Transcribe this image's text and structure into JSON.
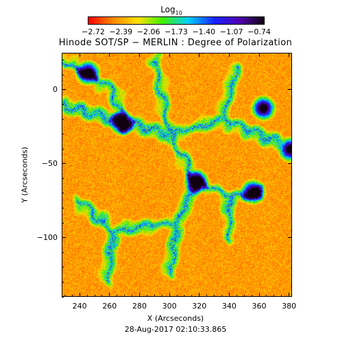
{
  "colorbar": {
    "title_main": "Log",
    "title_sub": "10",
    "tick_labels": [
      "−2.72",
      "−2.39",
      "−2.06",
      "−1.73",
      "−1.40",
      "−1.07",
      "−0.74"
    ],
    "colors": [
      "#ff0000",
      "#ff8800",
      "#ffe000",
      "#44f000",
      "#00d0ff",
      "#1820ff",
      "#5000b0",
      "#100010"
    ]
  },
  "title": "Hinode SOT/SP − MERLIN : Degree of Polarization",
  "axes": {
    "xlabel": "X (Arcseconds)",
    "ylabel": "Y (Arcseconds)",
    "xlim": [
      228,
      382
    ],
    "ylim": [
      -140,
      25
    ],
    "x_ticks": [
      240,
      260,
      280,
      300,
      320,
      340,
      360,
      380
    ],
    "y_ticks": [
      0,
      -50,
      -100
    ],
    "x_tick_labels": [
      "240",
      "260",
      "280",
      "300",
      "320",
      "340",
      "360",
      "380"
    ],
    "y_tick_labels": [
      "0",
      "−50",
      "−100"
    ]
  },
  "timestamp": "28-Aug-2017 02:10:33.865",
  "map": {
    "quantity": "Degree of Polarization",
    "scale": "log10",
    "value_range": [
      -2.72,
      -0.74
    ],
    "features": [
      {
        "kind": "strong-field-patch",
        "x": 245,
        "y": 12
      },
      {
        "kind": "strong-field-patch",
        "x": 268,
        "y": -22
      },
      {
        "kind": "strong-field-patch",
        "x": 318,
        "y": -62
      },
      {
        "kind": "strong-field-patch",
        "x": 356,
        "y": -69
      },
      {
        "kind": "strong-field-patch",
        "x": 381,
        "y": -40
      },
      {
        "kind": "strong-field-patch",
        "x": 363,
        "y": -12
      }
    ],
    "network_lanes": [
      {
        "from": [
          228,
          -10
        ],
        "to": [
          300,
          -30
        ]
      },
      {
        "from": [
          300,
          -30
        ],
        "to": [
          335,
          -20
        ]
      },
      {
        "from": [
          335,
          -20
        ],
        "to": [
          372,
          -35
        ]
      },
      {
        "from": [
          300,
          -30
        ],
        "to": [
          318,
          -62
        ]
      },
      {
        "from": [
          318,
          -62
        ],
        "to": [
          340,
          -72
        ]
      },
      {
        "from": [
          340,
          -72
        ],
        "to": [
          360,
          -70
        ]
      },
      {
        "from": [
          318,
          -62
        ],
        "to": [
          305,
          -90
        ]
      },
      {
        "from": [
          305,
          -90
        ],
        "to": [
          262,
          -95
        ]
      },
      {
        "from": [
          262,
          -95
        ],
        "to": [
          238,
          -75
        ]
      },
      {
        "from": [
          305,
          -90
        ],
        "to": [
          300,
          -125
        ]
      },
      {
        "from": [
          340,
          -72
        ],
        "to": [
          340,
          -100
        ]
      },
      {
        "from": [
          262,
          -95
        ],
        "to": [
          258,
          -130
        ]
      },
      {
        "from": [
          230,
          20
        ],
        "to": [
          262,
          0
        ]
      },
      {
        "from": [
          262,
          0
        ],
        "to": [
          270,
          -25
        ]
      },
      {
        "from": [
          290,
          20
        ],
        "to": [
          300,
          -30
        ]
      },
      {
        "from": [
          345,
          15
        ],
        "to": [
          335,
          -20
        ]
      }
    ]
  }
}
